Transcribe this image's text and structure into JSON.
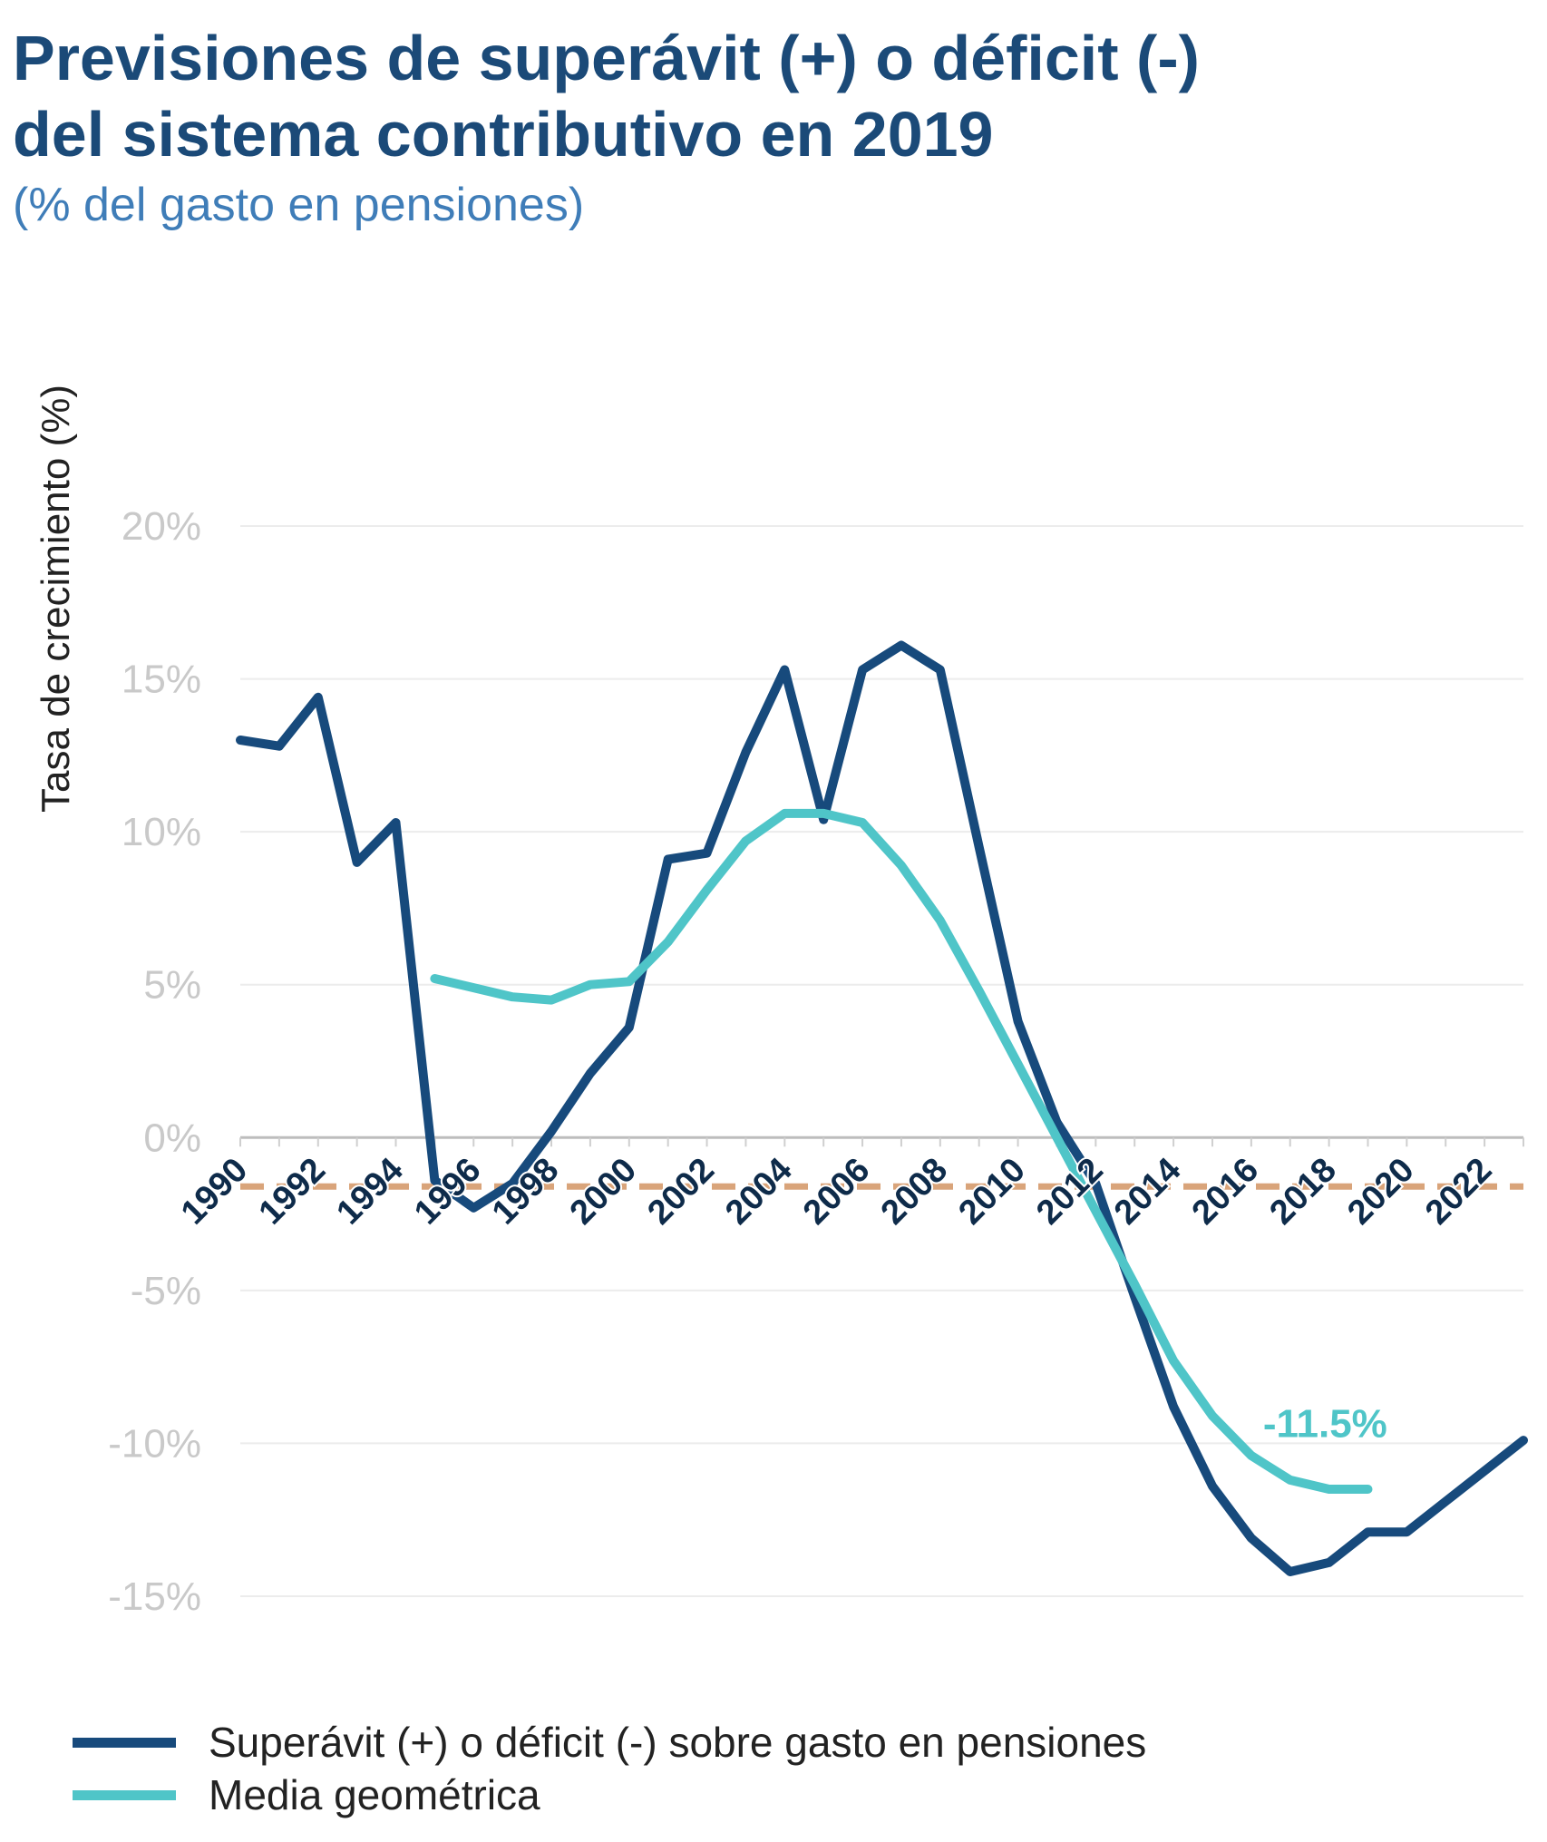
{
  "title_lines": [
    "Previsiones de superávit (+) o déficit (-)",
    "del sistema contributivo en 2019"
  ],
  "subtitle": "(% del gasto en pensiones)",
  "chart_data": {
    "type": "line",
    "ylabel": "Tasa de crecimiento (%)",
    "ylim": [
      -15,
      20
    ],
    "xlim": [
      1990,
      2023
    ],
    "grid": true,
    "y_ticks": [
      {
        "value": 20,
        "label": "20%"
      },
      {
        "value": 15,
        "label": "15%"
      },
      {
        "value": 10,
        "label": "10%"
      },
      {
        "value": 5,
        "label": "5%"
      },
      {
        "value": 0,
        "label": "0%"
      },
      {
        "value": -5,
        "label": "-5%"
      },
      {
        "value": -10,
        "label": "-10%"
      },
      {
        "value": -15,
        "label": "-15%"
      }
    ],
    "x_ticks": [
      "1990",
      "1992",
      "1994",
      "1996",
      "1998",
      "2000",
      "2002",
      "2004",
      "2006",
      "2008",
      "2010",
      "2012",
      "2014",
      "2016",
      "2018",
      "2020",
      "2022"
    ],
    "series": [
      {
        "name": "Superávit (+) o déficit (-) sobre gasto en pensiones",
        "color": "#174a7c",
        "x": [
          1990,
          1991,
          1992,
          1993,
          1994,
          1995,
          1996,
          1997,
          1998,
          1999,
          2000,
          2001,
          2002,
          2003,
          2004,
          2005,
          2006,
          2007,
          2008,
          2009,
          2010,
          2011,
          2012,
          2013,
          2014,
          2015,
          2016,
          2017,
          2018,
          2019,
          2020,
          2021,
          2022,
          2023
        ],
        "values": [
          13.0,
          12.8,
          14.4,
          9.0,
          10.3,
          -1.4,
          -2.3,
          -1.5,
          0.2,
          2.1,
          3.6,
          9.1,
          9.3,
          12.6,
          15.3,
          10.4,
          15.3,
          16.1,
          15.3,
          9.5,
          3.8,
          0.5,
          -1.5,
          -5.2,
          -8.8,
          -11.4,
          -13.1,
          -14.2,
          -13.9,
          -12.9,
          -12.9,
          -11.9,
          -10.9,
          -9.9
        ]
      },
      {
        "name": "Media geométrica",
        "color": "#4fc5c8",
        "x": [
          1995,
          1996,
          1997,
          1998,
          1999,
          2000,
          2001,
          2002,
          2003,
          2004,
          2005,
          2006,
          2007,
          2008,
          2009,
          2010,
          2011,
          2012,
          2013,
          2014,
          2015,
          2016,
          2017,
          2018,
          2019
        ],
        "values": [
          5.2,
          4.9,
          4.6,
          4.5,
          5.0,
          5.1,
          6.4,
          8.1,
          9.7,
          10.6,
          10.6,
          10.3,
          8.9,
          7.1,
          4.8,
          2.4,
          0.0,
          -2.4,
          -4.8,
          -7.3,
          -9.1,
          -10.4,
          -11.2,
          -11.5,
          -11.5
        ]
      }
    ],
    "reference_line": {
      "value": -1.6,
      "color": "#d9a47a",
      "style": "dashed"
    },
    "annotations": [
      {
        "text": "-11.5%",
        "x": 2017.9,
        "y": -9.8,
        "color": "#4fc5c8"
      }
    ]
  }
}
